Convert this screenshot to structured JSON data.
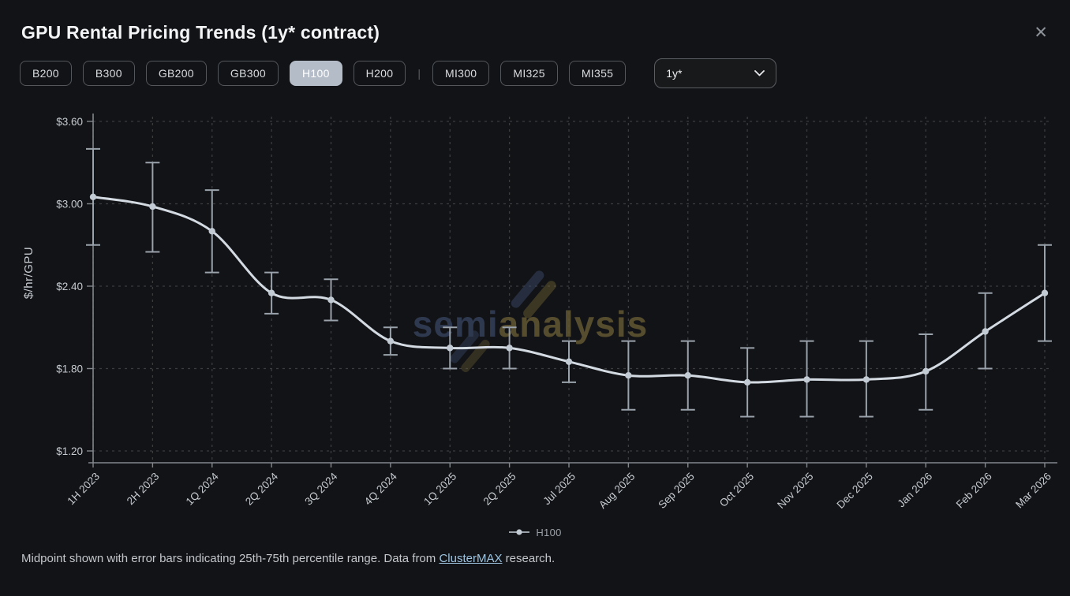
{
  "header": {
    "title": "GPU Rental Pricing Trends (1y* contract)",
    "close_icon": "✕"
  },
  "toolbar": {
    "gpu_buttons": [
      {
        "label": "B200",
        "selected": false,
        "group": "nvidia"
      },
      {
        "label": "B300",
        "selected": false,
        "group": "nvidia"
      },
      {
        "label": "GB200",
        "selected": false,
        "group": "nvidia"
      },
      {
        "label": "GB300",
        "selected": false,
        "group": "nvidia"
      },
      {
        "label": "H100",
        "selected": true,
        "group": "nvidia"
      },
      {
        "label": "H200",
        "selected": false,
        "group": "nvidia"
      },
      {
        "label": "MI300",
        "selected": false,
        "group": "amd"
      },
      {
        "label": "MI325",
        "selected": false,
        "group": "amd"
      },
      {
        "label": "MI355",
        "selected": false,
        "group": "amd"
      }
    ],
    "group_separator": "|",
    "contract_dropdown": {
      "value": "1y*"
    }
  },
  "chart_data": {
    "type": "line",
    "title": "GPU Rental Pricing Trends (1y* contract)",
    "xlabel": "",
    "ylabel": "$/hr/GPU",
    "ylim": [
      1.2,
      3.6
    ],
    "y_ticks": [
      1.2,
      1.8,
      2.4,
      3.0,
      3.6
    ],
    "y_tick_labels": [
      "$1.20",
      "$1.80",
      "$2.40",
      "$3.00",
      "$3.60"
    ],
    "grid": true,
    "legend_position": "bottom",
    "error_bars": "25th-75th percentile range",
    "categories": [
      "1H 2023",
      "2H 2023",
      "1Q 2024",
      "2Q 2024",
      "3Q 2024",
      "4Q 2024",
      "1Q 2025",
      "2Q 2025",
      "Jul 2025",
      "Aug 2025",
      "Sep 2025",
      "Oct 2025",
      "Nov 2025",
      "Dec 2025",
      "Jan 2026",
      "Feb 2026",
      "Mar 2026"
    ],
    "series": [
      {
        "name": "H100",
        "midpoint": [
          3.05,
          2.98,
          2.8,
          2.35,
          2.3,
          2.0,
          1.95,
          1.95,
          1.85,
          1.75,
          1.75,
          1.7,
          1.72,
          1.72,
          1.78,
          2.07,
          2.35
        ],
        "p25": [
          2.7,
          2.65,
          2.5,
          2.2,
          2.15,
          1.9,
          1.8,
          1.8,
          1.7,
          1.5,
          1.5,
          1.45,
          1.45,
          1.45,
          1.5,
          1.8,
          2.0
        ],
        "p75": [
          3.4,
          3.3,
          3.1,
          2.5,
          2.45,
          2.1,
          2.1,
          2.1,
          2.0,
          2.0,
          2.0,
          1.95,
          2.0,
          2.0,
          2.05,
          2.35,
          2.7
        ]
      }
    ]
  },
  "watermark": {
    "part1": "semi",
    "part2": "analysis"
  },
  "legend": {
    "items": [
      {
        "label": "H100"
      }
    ]
  },
  "footer": {
    "text_before": "Midpoint shown with error bars indicating 25th-75th percentile range. Data from ",
    "link_text": "ClusterMAX",
    "text_after": " research."
  },
  "colors": {
    "background": "#121316",
    "line": "#d3dae2",
    "point": "#c2cad3",
    "error_bar": "#9aa2ab",
    "grid": "#3a3c3f",
    "axis": "#82878d",
    "tick_label": "#c6cbd1",
    "selected_button_bg": "#b4bcc8",
    "link": "#9ec4e0",
    "watermark_blue": "#3d4e70",
    "watermark_gold": "#6e6134"
  }
}
